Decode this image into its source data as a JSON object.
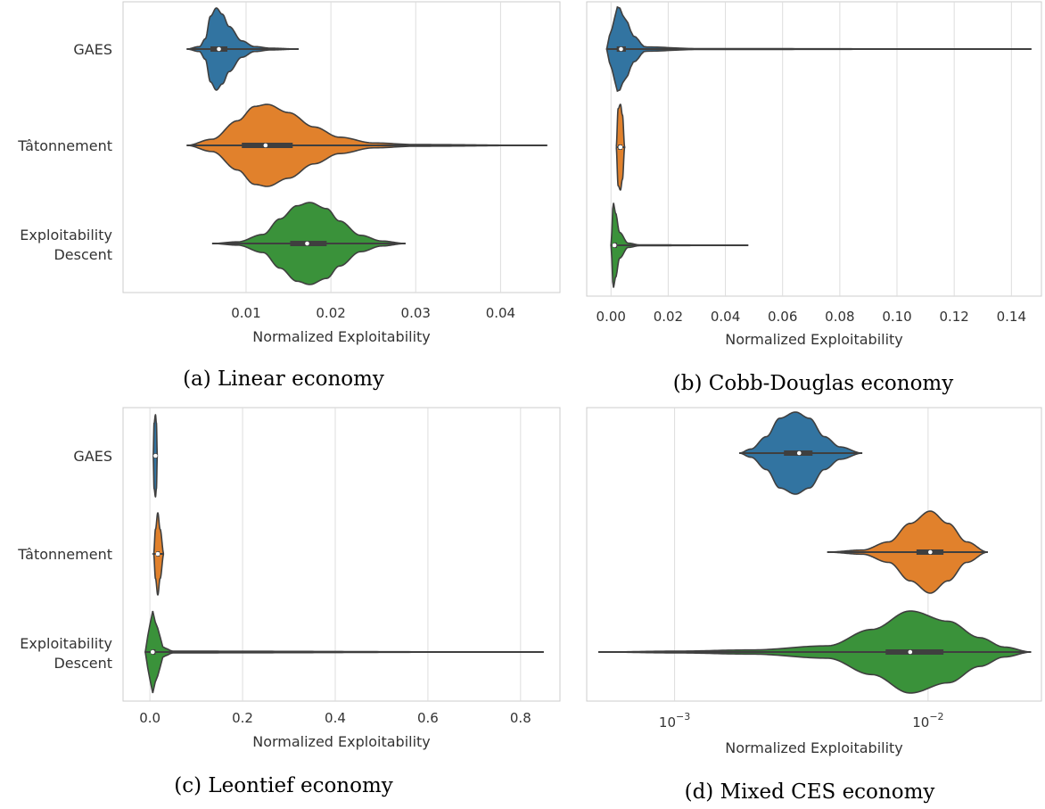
{
  "chart_data": [
    {
      "type": "violin",
      "caption": "(a) Linear economy",
      "xlabel": "Normalized Exploitability",
      "ylabel": "",
      "x_scale": "linear",
      "xlim": [
        -0.0045,
        0.047
      ],
      "xticks": [
        0.01,
        0.02,
        0.03,
        0.04
      ],
      "xtick_labels": [
        "0.01",
        "0.02",
        "0.03",
        "0.04"
      ],
      "grid": "vertical",
      "categories": [
        "GAES",
        "Tâtonnement",
        "Exploitability Descent"
      ],
      "category_labels": [
        [
          "GAES"
        ],
        [
          "Tâtonnement"
        ],
        [
          "Exploitability",
          "Descent"
        ]
      ],
      "series": [
        {
          "name": "GAES",
          "color": "#3274a1",
          "min": 0.003,
          "max": 0.0162,
          "q1": 0.0058,
          "median": 0.0068,
          "q3": 0.0078,
          "profile": [
            [
              0.003,
              0.0
            ],
            [
              0.0045,
              0.06
            ],
            [
              0.0052,
              0.25
            ],
            [
              0.0058,
              0.8
            ],
            [
              0.0065,
              1.0
            ],
            [
              0.0072,
              0.85
            ],
            [
              0.008,
              0.55
            ],
            [
              0.0095,
              0.2
            ],
            [
              0.011,
              0.06
            ],
            [
              0.013,
              0.02
            ],
            [
              0.0162,
              0.0
            ]
          ]
        },
        {
          "name": "Tâtonnement",
          "color": "#e1812c",
          "min": 0.003,
          "max": 0.0455,
          "q1": 0.0095,
          "median": 0.0123,
          "q3": 0.0155,
          "profile": [
            [
              0.003,
              0.0
            ],
            [
              0.006,
              0.15
            ],
            [
              0.009,
              0.6
            ],
            [
              0.011,
              0.95
            ],
            [
              0.0125,
              1.0
            ],
            [
              0.015,
              0.8
            ],
            [
              0.018,
              0.45
            ],
            [
              0.021,
              0.2
            ],
            [
              0.025,
              0.06
            ],
            [
              0.03,
              0.02
            ],
            [
              0.0455,
              0.0
            ]
          ]
        },
        {
          "name": "Exploitability Descent",
          "color": "#3a923a",
          "min": 0.006,
          "max": 0.0288,
          "q1": 0.0152,
          "median": 0.0172,
          "q3": 0.0195,
          "profile": [
            [
              0.006,
              0.0
            ],
            [
              0.009,
              0.04
            ],
            [
              0.012,
              0.22
            ],
            [
              0.014,
              0.6
            ],
            [
              0.016,
              0.92
            ],
            [
              0.0175,
              1.0
            ],
            [
              0.0195,
              0.85
            ],
            [
              0.021,
              0.55
            ],
            [
              0.0235,
              0.2
            ],
            [
              0.026,
              0.06
            ],
            [
              0.0288,
              0.0
            ]
          ]
        }
      ]
    },
    {
      "type": "violin",
      "caption": "(b) Cobb-Douglas economy",
      "xlabel": "Normalized Exploitability",
      "ylabel": "",
      "x_scale": "linear",
      "xlim": [
        -0.0085,
        0.1505
      ],
      "xticks": [
        0.0,
        0.02,
        0.04,
        0.06,
        0.08,
        0.1,
        0.12,
        0.14
      ],
      "xtick_labels": [
        "0.00",
        "0.02",
        "0.04",
        "0.06",
        "0.08",
        "0.10",
        "0.12",
        "0.14"
      ],
      "grid": "vertical",
      "categories": [
        "GAES",
        "Tâtonnement",
        "Exploitability Descent"
      ],
      "category_labels": [],
      "series": [
        {
          "name": "GAES",
          "color": "#3274a1",
          "min": -0.0015,
          "max": 0.147,
          "q1": 0.002,
          "median": 0.0035,
          "q3": 0.0052,
          "profile": [
            [
              -0.0015,
              0.0
            ],
            [
              0.0,
              0.45
            ],
            [
              0.0025,
              1.0
            ],
            [
              0.005,
              0.7
            ],
            [
              0.008,
              0.3
            ],
            [
              0.012,
              0.05
            ],
            [
              0.03,
              0.01
            ],
            [
              0.147,
              0.0
            ]
          ]
        },
        {
          "name": "Tâtonnement",
          "color": "#e1812c",
          "min": 0.0018,
          "max": 0.0048,
          "q1": 0.0025,
          "median": 0.0033,
          "q3": 0.0039,
          "profile": [
            [
              0.0018,
              0.0
            ],
            [
              0.0025,
              0.9
            ],
            [
              0.0033,
              1.0
            ],
            [
              0.004,
              0.75
            ],
            [
              0.0048,
              0.0
            ]
          ]
        },
        {
          "name": "Exploitability Descent",
          "color": "#3a923a",
          "min": 0.0,
          "max": 0.048,
          "q1": 0.0008,
          "median": 0.0012,
          "q3": 0.0021,
          "profile": [
            [
              0.0,
              0.0
            ],
            [
              0.0008,
              1.0
            ],
            [
              0.0016,
              0.75
            ],
            [
              0.003,
              0.3
            ],
            [
              0.006,
              0.05
            ],
            [
              0.01,
              0.01
            ],
            [
              0.048,
              0.0
            ]
          ]
        }
      ]
    },
    {
      "type": "violin",
      "caption": "(c) Leontief economy",
      "xlabel": "Normalized Exploitability",
      "ylabel": "",
      "x_scale": "linear",
      "xlim": [
        -0.058,
        0.885
      ],
      "xticks": [
        0.0,
        0.2,
        0.4,
        0.6,
        0.8
      ],
      "xtick_labels": [
        "0.0",
        "0.2",
        "0.4",
        "0.6",
        "0.8"
      ],
      "grid": "vertical",
      "categories": [
        "GAES",
        "Tâtonnement",
        "Exploitability Descent"
      ],
      "category_labels": [
        [
          "GAES"
        ],
        [
          "Tâtonnement"
        ],
        [
          "Exploitability",
          "Descent"
        ]
      ],
      "series": [
        {
          "name": "GAES",
          "color": "#3274a1",
          "min": 0.007,
          "max": 0.016,
          "q1": 0.01,
          "median": 0.012,
          "q3": 0.014,
          "profile": [
            [
              0.007,
              0.0
            ],
            [
              0.009,
              0.8
            ],
            [
              0.012,
              1.0
            ],
            [
              0.014,
              0.8
            ],
            [
              0.016,
              0.0
            ]
          ]
        },
        {
          "name": "Tâtonnement",
          "color": "#e1812c",
          "min": 0.008,
          "max": 0.03,
          "q1": 0.014,
          "median": 0.017,
          "q3": 0.021,
          "profile": [
            [
              0.008,
              0.0
            ],
            [
              0.012,
              0.6
            ],
            [
              0.017,
              1.0
            ],
            [
              0.022,
              0.6
            ],
            [
              0.03,
              0.0
            ]
          ]
        },
        {
          "name": "Exploitability Descent",
          "color": "#3a923a",
          "min": -0.01,
          "max": 0.85,
          "q1": 0.003,
          "median": 0.006,
          "q3": 0.012,
          "profile": [
            [
              -0.01,
              0.0
            ],
            [
              0.0,
              0.7
            ],
            [
              0.006,
              1.0
            ],
            [
              0.015,
              0.6
            ],
            [
              0.03,
              0.1
            ],
            [
              0.05,
              0.02
            ],
            [
              0.85,
              0.0
            ]
          ]
        }
      ]
    },
    {
      "type": "violin",
      "caption": "(d) Mixed CES economy",
      "xlabel": "Normalized Exploitability",
      "ylabel": "",
      "x_scale": "log",
      "xlim": [
        0.00045,
        0.028
      ],
      "xticks": [
        0.001,
        0.01
      ],
      "xtick_labels": [
        "10",
        "10"
      ],
      "xtick_exponents": [
        "−3",
        "−2"
      ],
      "grid": "vertical",
      "categories": [
        "GAES",
        "Tâtonnement",
        "Exploitability Descent"
      ],
      "category_labels": [],
      "series": [
        {
          "name": "GAES",
          "color": "#3274a1",
          "min": 0.0018,
          "max": 0.0055,
          "q1": 0.0027,
          "median": 0.0031,
          "q3": 0.0035,
          "profile": [
            [
              0.0018,
              0.0
            ],
            [
              0.002,
              0.1
            ],
            [
              0.0023,
              0.4
            ],
            [
              0.0026,
              0.85
            ],
            [
              0.003,
              1.0
            ],
            [
              0.0034,
              0.85
            ],
            [
              0.0039,
              0.4
            ],
            [
              0.0045,
              0.15
            ],
            [
              0.0055,
              0.0
            ]
          ]
        },
        {
          "name": "Tâtonnement",
          "color": "#e1812c",
          "min": 0.004,
          "max": 0.0172,
          "q1": 0.009,
          "median": 0.0102,
          "q3": 0.0115,
          "profile": [
            [
              0.004,
              0.0
            ],
            [
              0.0055,
              0.05
            ],
            [
              0.007,
              0.25
            ],
            [
              0.0085,
              0.7
            ],
            [
              0.0102,
              1.0
            ],
            [
              0.012,
              0.7
            ],
            [
              0.0142,
              0.25
            ],
            [
              0.0172,
              0.0
            ]
          ]
        },
        {
          "name": "Exploitability Descent",
          "color": "#3a923a",
          "min": 0.0005,
          "max": 0.0255,
          "q1": 0.0068,
          "median": 0.0085,
          "q3": 0.0115,
          "profile": [
            [
              0.0005,
              0.0
            ],
            [
              0.001,
              0.02
            ],
            [
              0.002,
              0.05
            ],
            [
              0.004,
              0.15
            ],
            [
              0.006,
              0.55
            ],
            [
              0.0085,
              1.0
            ],
            [
              0.012,
              0.75
            ],
            [
              0.016,
              0.35
            ],
            [
              0.02,
              0.12
            ],
            [
              0.0255,
              0.0
            ]
          ]
        }
      ]
    }
  ]
}
